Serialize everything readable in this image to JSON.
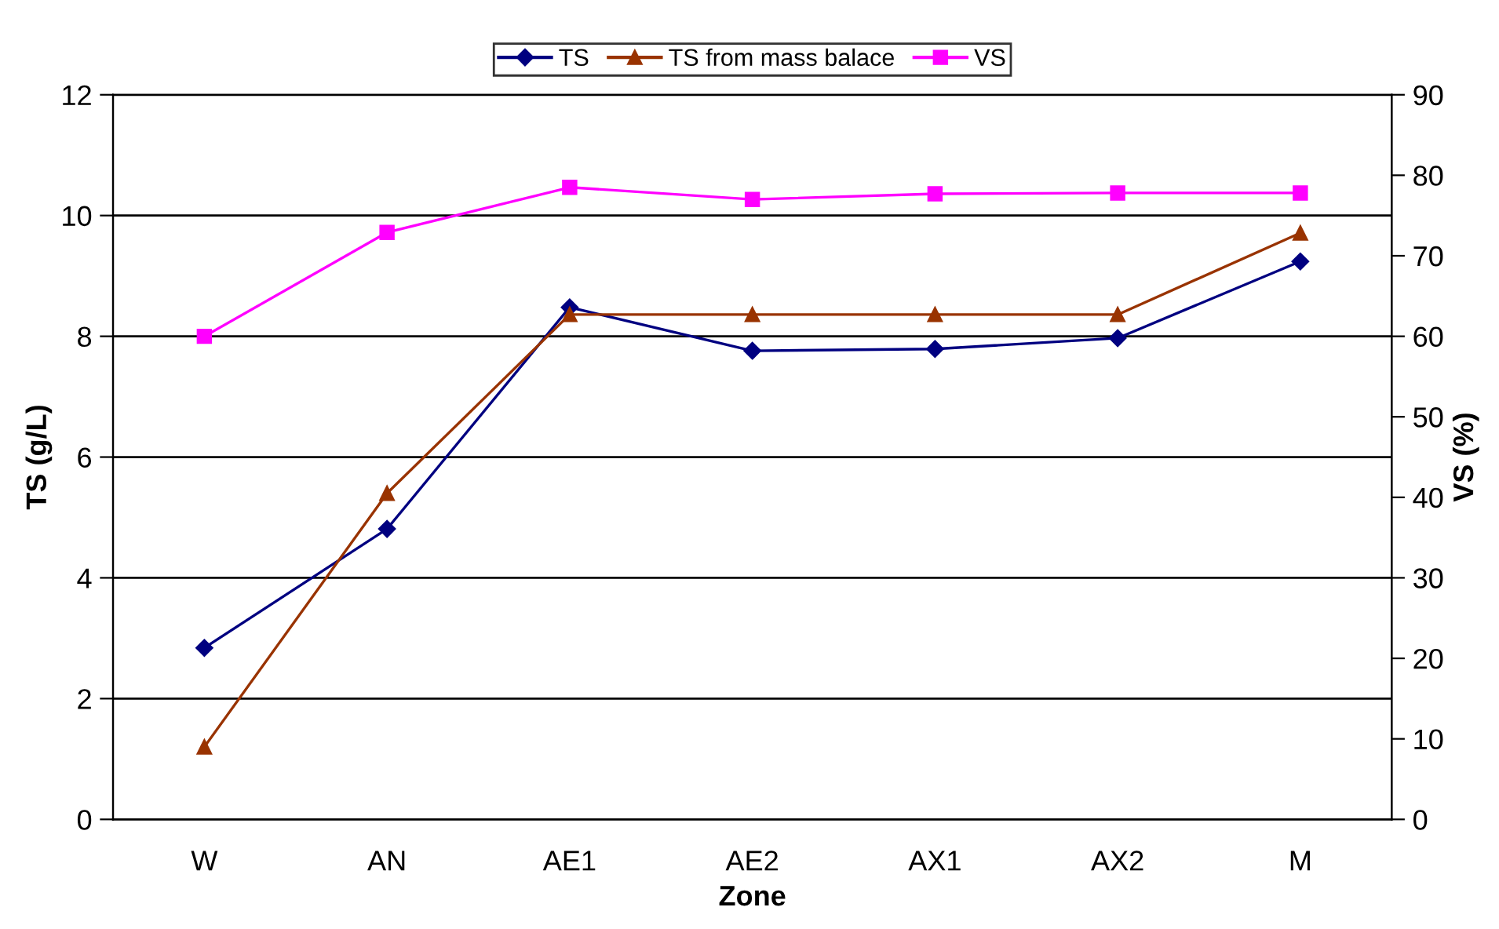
{
  "chart_data": {
    "type": "line",
    "xlabel": "Zone",
    "ylabel": "TS (g/L)",
    "y2label": "VS (%)",
    "categories": [
      "W",
      "AN",
      "AE1",
      "AE2",
      "AX1",
      "AX2",
      "M"
    ],
    "series": [
      {
        "name": "TS",
        "color": "#000080",
        "marker": "diamond",
        "values": [
          2.84,
          4.81,
          8.48,
          7.76,
          7.79,
          7.97,
          9.24
        ]
      },
      {
        "name": "TS from mass balace",
        "color": "#993300",
        "marker": "triangle",
        "values": [
          1.2,
          5.4,
          8.36,
          8.36,
          8.36,
          8.36,
          9.71
        ]
      },
      {
        "name": "VS",
        "color": "#ff00ff",
        "marker": "square",
        "axis": "y2",
        "values": [
          60,
          72.9,
          78.5,
          77.0,
          77.7,
          77.8,
          77.8
        ]
      }
    ],
    "ylim": [
      0,
      12
    ],
    "yticks": [
      0,
      2,
      4,
      6,
      8,
      10,
      12
    ],
    "y2lim": [
      0,
      90
    ],
    "y2ticks": [
      0,
      10,
      20,
      30,
      40,
      50,
      60,
      70,
      80,
      90
    ],
    "grid": "y",
    "legend": "top"
  }
}
